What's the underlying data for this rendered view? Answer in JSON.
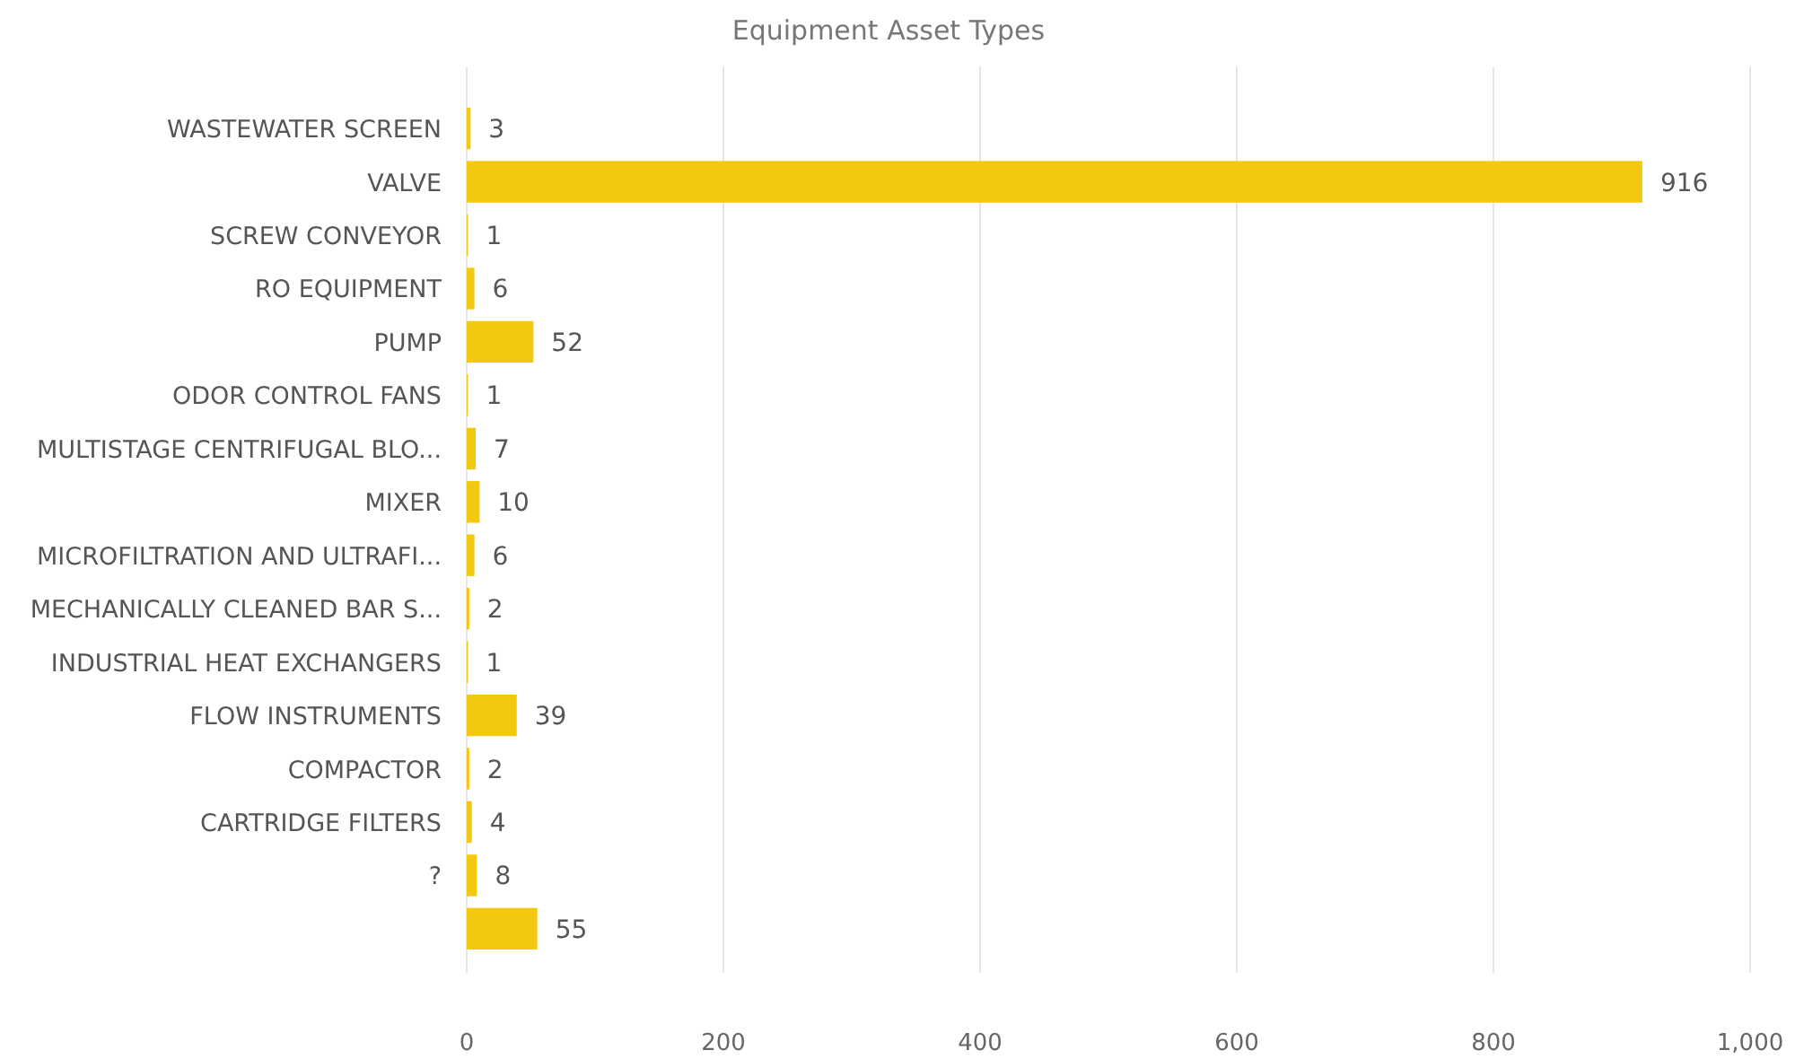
{
  "chart_data": {
    "type": "bar",
    "orientation": "horizontal",
    "title": "Equipment Asset Types",
    "categories": [
      "WASTEWATER SCREEN",
      "VALVE",
      "SCREW CONVEYOR",
      "RO EQUIPMENT",
      "PUMP",
      "ODOR CONTROL FANS",
      "MULTISTAGE CENTRIFUGAL BLO...",
      "MIXER",
      "MICROFILTRATION AND ULTRAFI...",
      "MECHANICALLY CLEANED BAR S...",
      "INDUSTRIAL HEAT EXCHANGERS",
      "FLOW INSTRUMENTS",
      "COMPACTOR",
      "CARTRIDGE FILTERS",
      "?",
      null
    ],
    "values": [
      3,
      916,
      1,
      6,
      52,
      1,
      7,
      10,
      6,
      2,
      1,
      39,
      2,
      4,
      8,
      55
    ],
    "color": "#f2c811",
    "xlim": [
      0,
      1000
    ],
    "xticks": [
      0,
      200,
      400,
      600,
      800,
      {
        "value": 1000,
        "label": "1,000"
      }
    ],
    "grid": "x",
    "data_labels": true
  }
}
